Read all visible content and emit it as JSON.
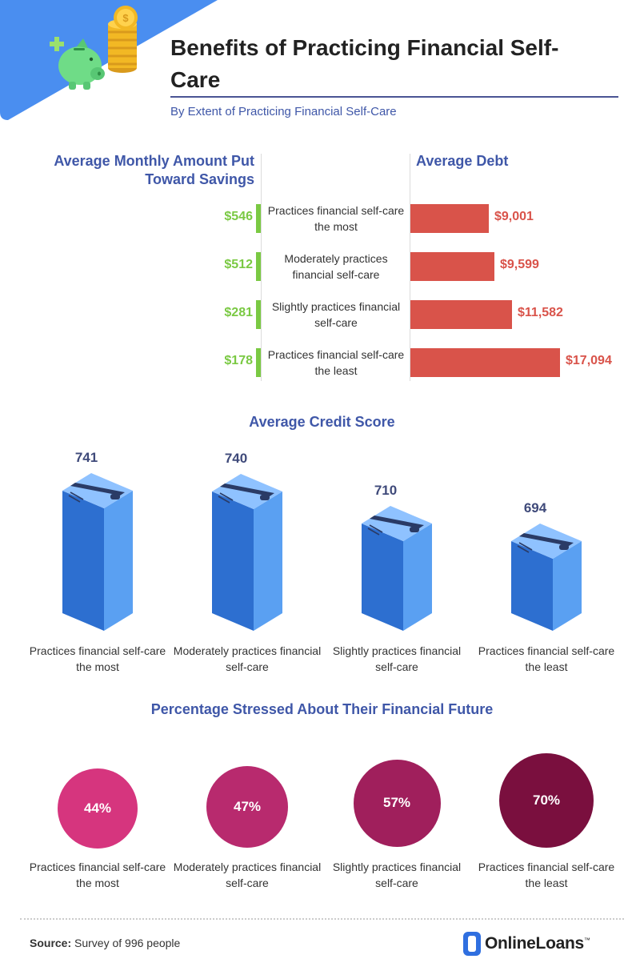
{
  "header": {
    "title": "Benefits of Practicing Financial Self-Care",
    "subtitle": "By Extent of Practicing Financial Self-Care"
  },
  "labels": [
    "Practices financial self-care the most",
    "Moderately practices financial self-care",
    "Slightly practices financial self-care",
    "Practices financial self-care the least"
  ],
  "colors": {
    "accent_blue": "#3f57a8",
    "savings_green": "#7ac943",
    "debt_red": "#d9534a",
    "header_blue": "#4a8ef0"
  },
  "chart_data": [
    {
      "type": "bar",
      "title": "Average Monthly Amount Put Toward Savings",
      "categories": [
        "Practices financial self-care the most",
        "Moderately practices financial self-care",
        "Slightly practices financial self-care",
        "Practices financial self-care the least"
      ],
      "values": [
        546,
        512,
        281,
        178
      ],
      "value_labels": [
        "$546",
        "$512",
        "$281",
        "$178"
      ]
    },
    {
      "type": "bar",
      "title": "Average Debt",
      "categories": [
        "Practices financial self-care the most",
        "Moderately practices financial self-care",
        "Slightly practices financial self-care",
        "Practices financial self-care the least"
      ],
      "values": [
        9001,
        9599,
        11582,
        17094
      ],
      "value_labels": [
        "$9,001",
        "$9,599",
        "$11,582",
        "$17,094"
      ]
    },
    {
      "type": "bar",
      "title": "Average Credit Score",
      "categories": [
        "Practices financial self-care the most",
        "Moderately practices financial self-care",
        "Slightly practices financial self-care",
        "Practices financial self-care the least"
      ],
      "values": [
        741,
        740,
        710,
        694
      ],
      "value_labels": [
        "741",
        "740",
        "710",
        "694"
      ]
    },
    {
      "type": "bubble",
      "title": "Percentage Stressed About Their Financial Future",
      "categories": [
        "Practices financial self-care the most",
        "Moderately practices financial self-care",
        "Slightly practices financial self-care",
        "Practices financial self-care the least"
      ],
      "values": [
        44,
        47,
        57,
        70
      ],
      "value_labels": [
        "44%",
        "47%",
        "57%",
        "70%"
      ],
      "colors": [
        "#d6357e",
        "#b82a6e",
        "#a01f5c",
        "#7a0f3e"
      ]
    }
  ],
  "footer": {
    "source_label": "Source:",
    "source_text": " Survey of 996 people",
    "brand": "OnlineLoans",
    "trademark": "™"
  }
}
